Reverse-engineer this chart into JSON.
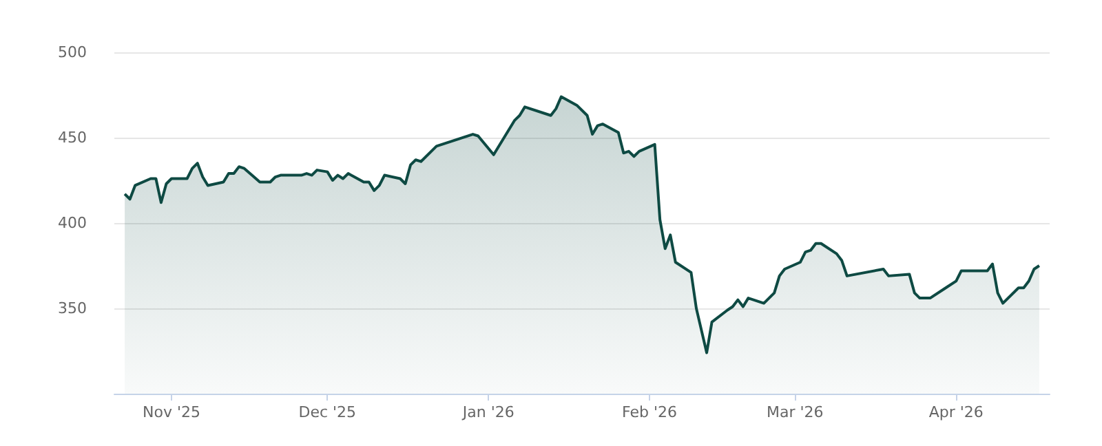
{
  "chart_data": {
    "type": "area",
    "x": [
      "2025-10-23",
      "2025-10-24",
      "2025-10-25",
      "2025-10-28",
      "2025-10-29",
      "2025-10-30",
      "2025-10-31",
      "2025-11-01",
      "2025-11-04",
      "2025-11-05",
      "2025-11-06",
      "2025-11-07",
      "2025-11-08",
      "2025-11-11",
      "2025-11-12",
      "2025-11-13",
      "2025-11-14",
      "2025-11-15",
      "2025-11-18",
      "2025-11-20",
      "2025-11-21",
      "2025-11-22",
      "2025-11-26",
      "2025-11-27",
      "2025-11-28",
      "2025-11-29",
      "2025-12-01",
      "2025-12-02",
      "2025-12-03",
      "2025-12-04",
      "2025-12-05",
      "2025-12-08",
      "2025-12-09",
      "2025-12-10",
      "2025-12-11",
      "2025-12-12",
      "2025-12-15",
      "2025-12-16",
      "2025-12-17",
      "2025-12-18",
      "2025-12-19",
      "2025-12-22",
      "2025-12-29",
      "2025-12-30",
      "2026-01-02",
      "2026-01-06",
      "2026-01-07",
      "2026-01-08",
      "2026-01-13",
      "2026-01-14",
      "2026-01-15",
      "2026-01-18",
      "2026-01-20",
      "2026-01-21",
      "2026-01-22",
      "2026-01-23",
      "2026-01-26",
      "2026-01-27",
      "2026-01-28",
      "2026-01-29",
      "2026-01-30",
      "2026-02-02",
      "2026-02-03",
      "2026-02-04",
      "2026-02-05",
      "2026-02-06",
      "2026-02-09",
      "2026-02-10",
      "2026-02-12",
      "2026-02-13",
      "2026-02-16",
      "2026-02-17",
      "2026-02-18",
      "2026-02-19",
      "2026-02-20",
      "2026-02-23",
      "2026-02-25",
      "2026-02-26",
      "2026-02-27",
      "2026-03-02",
      "2026-03-03",
      "2026-03-04",
      "2026-03-05",
      "2026-03-06",
      "2026-03-09",
      "2026-03-10",
      "2026-03-11",
      "2026-03-18",
      "2026-03-19",
      "2026-03-23",
      "2026-03-24",
      "2026-03-25",
      "2026-03-27",
      "2026-03-30",
      "2026-04-01",
      "2026-04-02",
      "2026-04-07",
      "2026-04-08",
      "2026-04-09",
      "2026-04-10",
      "2026-04-13",
      "2026-04-14",
      "2026-04-15",
      "2026-04-16",
      "2026-04-17"
    ],
    "series": [
      {
        "color": "#0e4a43",
        "values": [
          417,
          414,
          422,
          426,
          426,
          412,
          423,
          426,
          426,
          432,
          435,
          427,
          422,
          424,
          429,
          429,
          433,
          432,
          424,
          424,
          427,
          428,
          428,
          429,
          428,
          431,
          430,
          425,
          428,
          426,
          429,
          424,
          424,
          419,
          422,
          428,
          426,
          423,
          434,
          437,
          436,
          445,
          452,
          451,
          440,
          460,
          463,
          468,
          463,
          467,
          474,
          469,
          463,
          452,
          457,
          458,
          453,
          441,
          442,
          439,
          442,
          446,
          402,
          385,
          393,
          377,
          371,
          350,
          324,
          342,
          349,
          351,
          355,
          351,
          356,
          353,
          359,
          369,
          373,
          377,
          383,
          384,
          388,
          388,
          382,
          378,
          369,
          373,
          369,
          370,
          359,
          356,
          356,
          362,
          366,
          372,
          372,
          376,
          359,
          353,
          362,
          362,
          366,
          373,
          375
        ]
      }
    ],
    "xlim": [
      "2025-10-21",
      "2026-04-19"
    ],
    "xticks": [
      {
        "value": "2025-11-01",
        "label": "Nov '25"
      },
      {
        "value": "2025-12-01",
        "label": "Dec '25"
      },
      {
        "value": "2026-01-01",
        "label": "Jan '26"
      },
      {
        "value": "2026-02-01",
        "label": "Feb '26"
      },
      {
        "value": "2026-03-01",
        "label": "Mar '26"
      },
      {
        "value": "2026-04-01",
        "label": "Apr '26"
      }
    ],
    "ylim": [
      300,
      500
    ],
    "yticks": [
      350,
      400,
      450,
      500
    ],
    "grid": "y"
  }
}
